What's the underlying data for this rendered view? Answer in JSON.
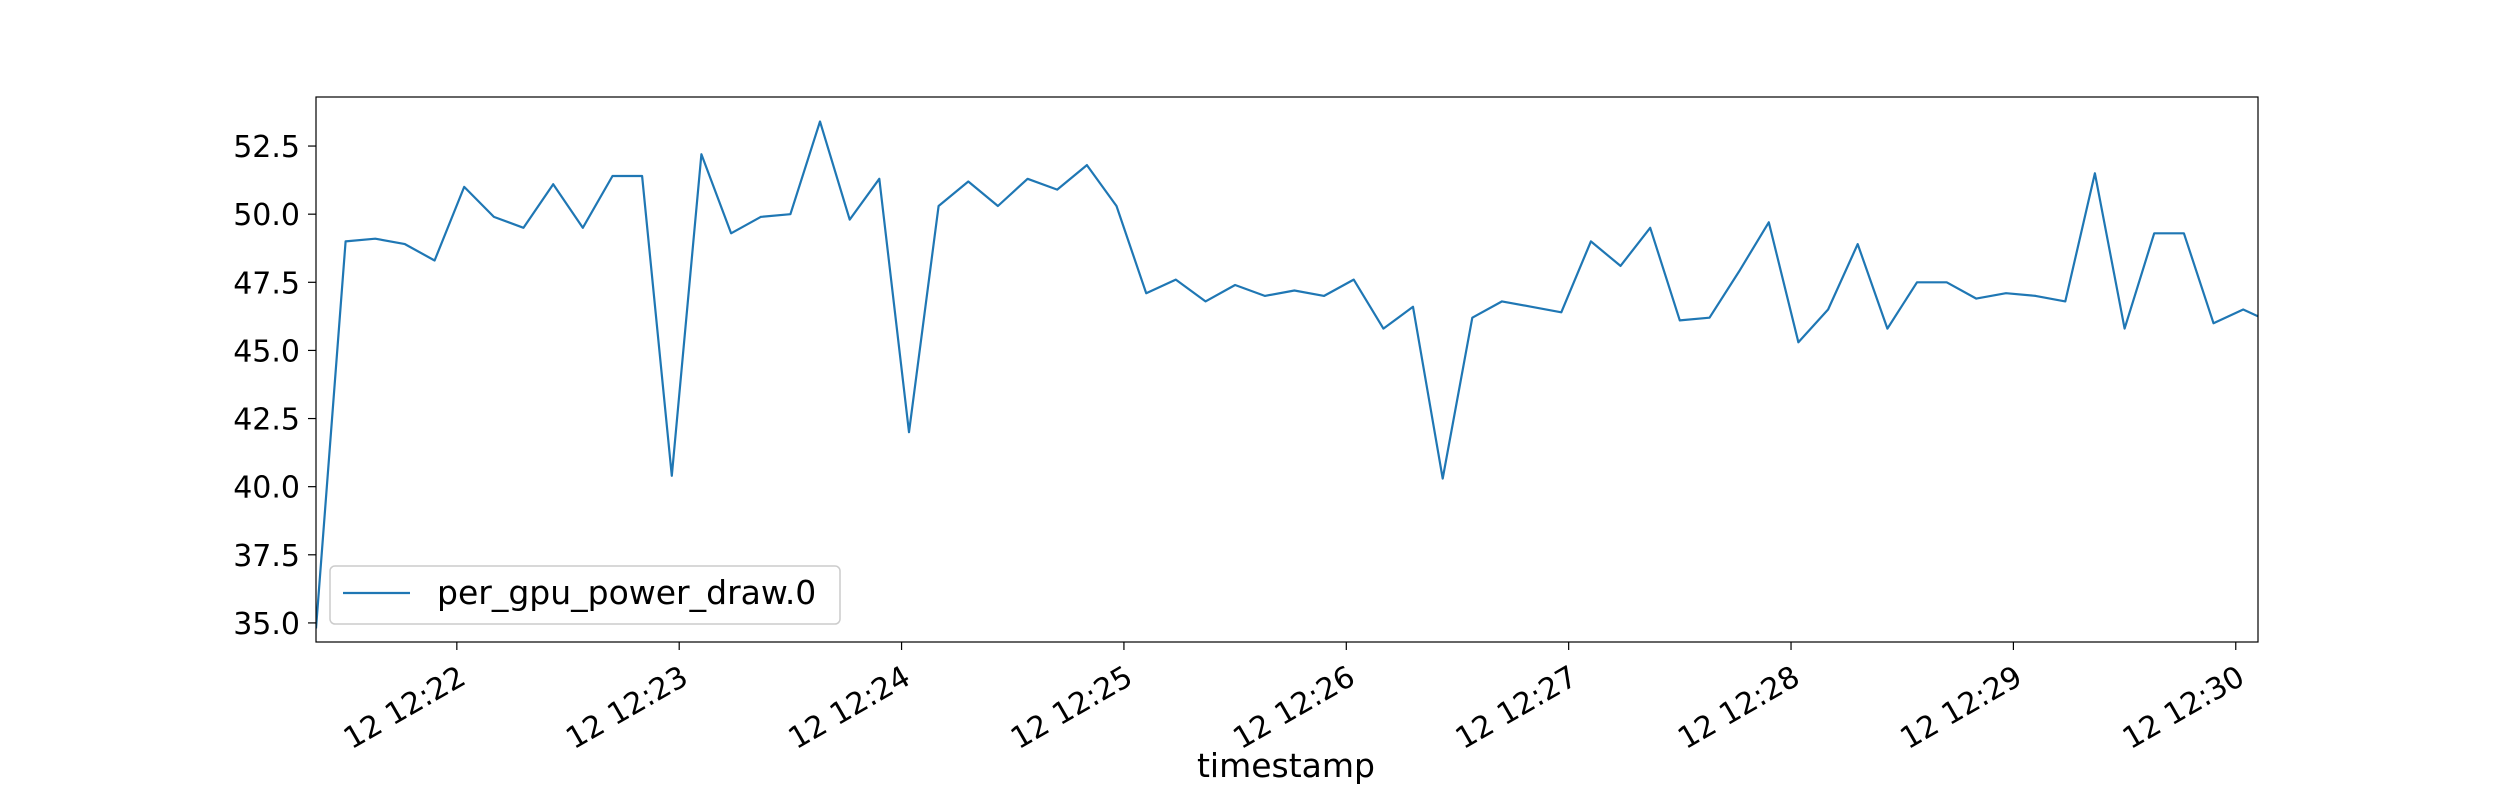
{
  "chart_data": {
    "type": "line",
    "title": "",
    "xlabel": "timestamp",
    "ylabel": "",
    "x_ticks": [
      "12 12:22",
      "12 12:23",
      "12 12:24",
      "12 12:25",
      "12 12:26",
      "12 12:27",
      "12 12:28",
      "12 12:29",
      "12 12:30"
    ],
    "y_ticks": [
      "35.0",
      "37.5",
      "40.0",
      "42.5",
      "45.0",
      "47.5",
      "50.0",
      "52.5"
    ],
    "xlim": [
      "12:21:22",
      "12:30:06"
    ],
    "ylim": [
      34.3,
      54.3
    ],
    "grid": false,
    "legend": {
      "position": "lower-left",
      "entries": [
        "per_gpu_power_draw.0"
      ]
    },
    "series": [
      {
        "name": "per_gpu_power_draw.0",
        "color": "#1f77b4",
        "x": [
          "12:21:22",
          "12:21:30",
          "12:21:38",
          "12:21:46",
          "12:21:54",
          "12:22:02",
          "12:22:10",
          "12:22:18",
          "12:22:26",
          "12:22:34",
          "12:22:42",
          "12:22:50",
          "12:22:58",
          "12:23:06",
          "12:23:14",
          "12:23:22",
          "12:23:30",
          "12:23:38",
          "12:23:46",
          "12:23:54",
          "12:24:02",
          "12:24:10",
          "12:24:18",
          "12:24:26",
          "12:24:34",
          "12:24:42",
          "12:24:50",
          "12:24:58",
          "12:25:06",
          "12:25:14",
          "12:25:22",
          "12:25:30",
          "12:25:38",
          "12:25:46",
          "12:25:54",
          "12:26:02",
          "12:26:10",
          "12:26:18",
          "12:26:26",
          "12:26:34",
          "12:26:42",
          "12:26:50",
          "12:26:58",
          "12:27:06",
          "12:27:14",
          "12:27:22",
          "12:27:30",
          "12:27:38",
          "12:27:46",
          "12:27:54",
          "12:28:02",
          "12:28:10",
          "12:28:18",
          "12:28:26",
          "12:28:34",
          "12:28:42",
          "12:28:50",
          "12:28:58",
          "12:29:06",
          "12:29:14",
          "12:29:22",
          "12:29:30",
          "12:29:38",
          "12:29:46",
          "12:29:54",
          "12:30:02",
          "12:30:10"
        ],
        "values": [
          34.8,
          49.0,
          49.1,
          48.9,
          48.3,
          51.0,
          49.9,
          49.5,
          51.1,
          49.5,
          51.4,
          51.4,
          40.4,
          52.2,
          49.3,
          49.9,
          50.0,
          53.4,
          49.8,
          51.3,
          42.0,
          50.3,
          51.2,
          50.3,
          51.3,
          50.9,
          51.8,
          50.3,
          47.1,
          47.6,
          46.8,
          47.4,
          47.0,
          47.2,
          47.0,
          47.6,
          45.8,
          46.6,
          40.3,
          46.2,
          46.8,
          46.6,
          46.4,
          49.0,
          48.1,
          49.5,
          46.1,
          46.2,
          47.9,
          49.7,
          45.3,
          46.5,
          48.9,
          45.8,
          47.5,
          47.5,
          46.9,
          47.1,
          47.0,
          46.8,
          51.5,
          45.8,
          49.3,
          49.3,
          46.0,
          46.5,
          46.0
        ]
      }
    ]
  }
}
